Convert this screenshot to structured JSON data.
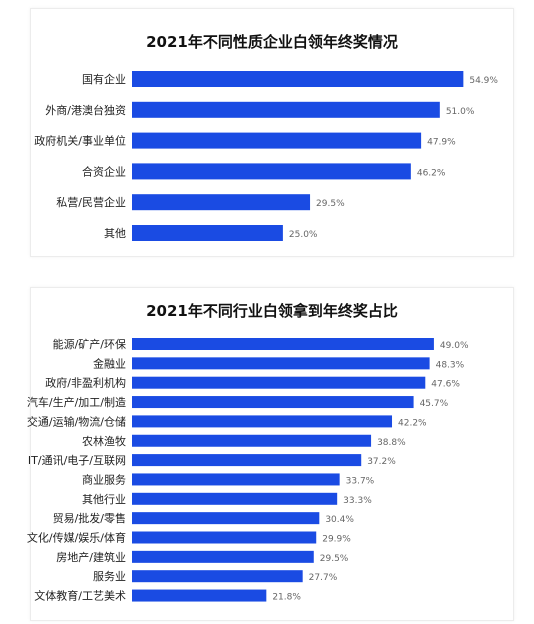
{
  "bar_color": "#1a4be3",
  "chart_data": [
    {
      "type": "bar",
      "orientation": "horizontal",
      "title": "2021年不同性质企业白领年终奖情况",
      "categories": [
        "国有企业",
        "外商/港澳台独资",
        "政府机关/事业单位",
        "合资企业",
        "私营/民营企业",
        "其他"
      ],
      "values": [
        54.9,
        51.0,
        47.9,
        46.2,
        29.5,
        25.0
      ],
      "value_labels": [
        "54.9%",
        "51.0%",
        "47.9%",
        "46.2%",
        "29.5%",
        "25.0%"
      ],
      "xlabel": "",
      "ylabel": "",
      "xlim": [
        0,
        56
      ],
      "grid": false,
      "legend": "none"
    },
    {
      "type": "bar",
      "orientation": "horizontal",
      "title": "2021年不同行业白领拿到年终奖占比",
      "categories": [
        "能源/矿产/环保",
        "金融业",
        "政府/非盈利机构",
        "汽车/生产/加工/制造",
        "交通/运输/物流/仓储",
        "农林渔牧",
        "IT/通讯/电子/互联网",
        "商业服务",
        "其他行业",
        "贸易/批发/零售",
        "文化/传媒/娱乐/体育",
        "房地产/建筑业",
        "服务业",
        "文体教育/工艺美术"
      ],
      "values": [
        49.0,
        48.3,
        47.6,
        45.7,
        42.2,
        38.8,
        37.2,
        33.7,
        33.3,
        30.4,
        29.9,
        29.5,
        27.7,
        21.8
      ],
      "value_labels": [
        "49.0%",
        "48.3%",
        "47.6%",
        "45.7%",
        "42.2%",
        "38.8%",
        "37.2%",
        "33.7%",
        "33.3%",
        "30.4%",
        "29.9%",
        "29.5%",
        "27.7%",
        "21.8%"
      ],
      "xlabel": "",
      "ylabel": "",
      "xlim": [
        0,
        49.5
      ],
      "grid": false,
      "legend": "none"
    }
  ]
}
